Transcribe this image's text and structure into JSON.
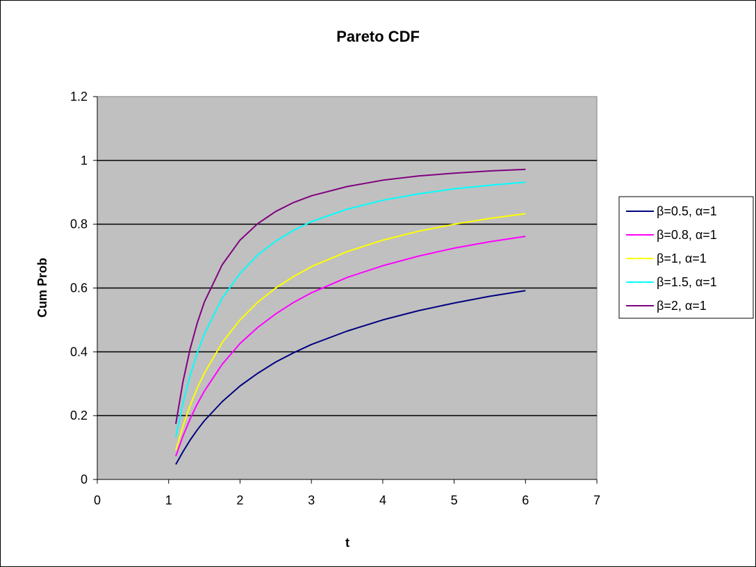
{
  "chart_data": {
    "type": "line",
    "title": "Pareto CDF",
    "xlabel": "t",
    "ylabel": "Cum Prob",
    "xlim": [
      0,
      7
    ],
    "ylim": [
      0,
      1.2
    ],
    "xticks": [
      "0",
      "1",
      "2",
      "3",
      "4",
      "5",
      "6",
      "7"
    ],
    "yticks": [
      "0",
      "0.2",
      "0.4",
      "0.6",
      "0.8",
      "1",
      "1.2"
    ],
    "grid": "horizontal",
    "plot_background": "#c0c0c0",
    "legend_position": "right",
    "series": [
      {
        "name": "β=0.5, α=1",
        "color": "#000080",
        "x": [
          1.1,
          1.2,
          1.3,
          1.4,
          1.5,
          1.75,
          2,
          2.25,
          2.5,
          2.75,
          3,
          3.5,
          4,
          4.5,
          5,
          5.5,
          6
        ],
        "y": [
          0.047,
          0.087,
          0.123,
          0.155,
          0.184,
          0.244,
          0.293,
          0.333,
          0.368,
          0.397,
          0.423,
          0.465,
          0.5,
          0.529,
          0.553,
          0.574,
          0.592
        ]
      },
      {
        "name": "β=0.8, α=1",
        "color": "#ff00ff",
        "x": [
          1.1,
          1.2,
          1.3,
          1.4,
          1.5,
          1.75,
          2,
          2.25,
          2.5,
          2.75,
          3,
          3.5,
          4,
          4.5,
          5,
          5.5,
          6
        ],
        "y": [
          0.073,
          0.136,
          0.189,
          0.236,
          0.277,
          0.361,
          0.426,
          0.477,
          0.519,
          0.555,
          0.585,
          0.633,
          0.67,
          0.7,
          0.725,
          0.745,
          0.762
        ]
      },
      {
        "name": "β=1, α=1",
        "color": "#ffff00",
        "x": [
          1.1,
          1.2,
          1.3,
          1.4,
          1.5,
          1.75,
          2,
          2.25,
          2.5,
          2.75,
          3,
          3.5,
          4,
          4.5,
          5,
          5.5,
          6
        ],
        "y": [
          0.091,
          0.167,
          0.231,
          0.286,
          0.333,
          0.429,
          0.5,
          0.556,
          0.6,
          0.636,
          0.667,
          0.714,
          0.75,
          0.778,
          0.8,
          0.818,
          0.833
        ]
      },
      {
        "name": "β=1.5, α=1",
        "color": "#00ffff",
        "x": [
          1.1,
          1.2,
          1.3,
          1.4,
          1.5,
          1.75,
          2,
          2.25,
          2.5,
          2.75,
          3,
          3.5,
          4,
          4.5,
          5,
          5.5,
          6
        ],
        "y": [
          0.133,
          0.239,
          0.325,
          0.396,
          0.456,
          0.568,
          0.646,
          0.704,
          0.747,
          0.781,
          0.808,
          0.847,
          0.875,
          0.895,
          0.911,
          0.922,
          0.932
        ]
      },
      {
        "name": "β=2, α=1",
        "color": "#800080",
        "x": [
          1.1,
          1.2,
          1.3,
          1.4,
          1.5,
          1.75,
          2,
          2.25,
          2.5,
          2.75,
          3,
          3.5,
          4,
          4.5,
          5,
          5.5,
          6
        ],
        "y": [
          0.174,
          0.306,
          0.408,
          0.49,
          0.556,
          0.673,
          0.75,
          0.802,
          0.84,
          0.868,
          0.889,
          0.918,
          0.938,
          0.951,
          0.96,
          0.967,
          0.972
        ]
      }
    ]
  }
}
